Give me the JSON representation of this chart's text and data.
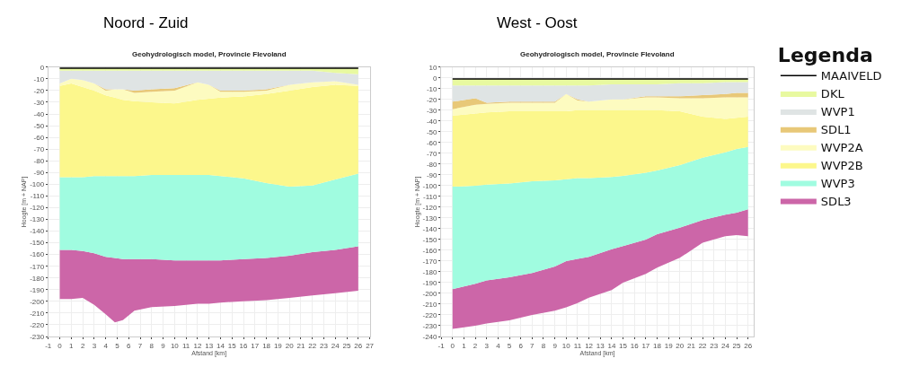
{
  "chart_data": [
    {
      "type": "area",
      "title": "Noord - Zuid",
      "subtitle": "Geohydrologisch model, Provincie Flevoland",
      "xlabel": "Afstand [km]",
      "ylabel": "Hoogte [m + NAP]",
      "grid": true,
      "legend": "right",
      "legend_title": "Legenda",
      "x": [
        0,
        1,
        2,
        3,
        4,
        4.8,
        5.5,
        6.5,
        8,
        10,
        12,
        13,
        14,
        16,
        18,
        20,
        22,
        24,
        26
      ],
      "xlim": [
        -1,
        27
      ],
      "xticks": [
        -1,
        0,
        1,
        2,
        3,
        4,
        5,
        6,
        7,
        8,
        9,
        10,
        11,
        12,
        13,
        14,
        15,
        16,
        17,
        18,
        19,
        20,
        21,
        22,
        23,
        24,
        25,
        26,
        27
      ],
      "ylim": [
        -230,
        0
      ],
      "yticks": [
        0,
        -10,
        -20,
        -30,
        -40,
        -50,
        -60,
        -70,
        -80,
        -90,
        -100,
        -110,
        -120,
        -130,
        -140,
        -150,
        -160,
        -170,
        -180,
        -190,
        -200,
        -210,
        -220,
        -230
      ],
      "series": [
        {
          "name": "MAAIVELD",
          "type": "line",
          "color": "#000000",
          "values": [
            -1,
            -1,
            -1,
            -1,
            -1,
            -1,
            -1,
            -1,
            -1,
            -1,
            -1,
            -1,
            -1,
            -1,
            -1,
            -1,
            -1,
            -1,
            -1
          ]
        },
        {
          "name": "DKL",
          "color": "#e8f9a0",
          "values": [
            -3,
            -3,
            -3,
            -3,
            -3,
            -3,
            -3,
            -3,
            -3,
            -3,
            -3,
            -3,
            -3,
            -3,
            -3,
            -3,
            -3,
            -5,
            -6
          ]
        },
        {
          "name": "WVP1",
          "color": "#dfe4e4",
          "values": [
            -14,
            -10,
            -11,
            -14,
            -19,
            -19,
            -19,
            -20,
            -19,
            -18,
            -13,
            -15,
            -20,
            -20,
            -19,
            -15,
            -13,
            -12,
            -15
          ]
        },
        {
          "name": "SDL1",
          "color": "#e8c878",
          "values": [
            -14,
            -10,
            -11,
            -14,
            -20,
            -19,
            -19,
            -22,
            -21,
            -20,
            -13,
            -15,
            -21,
            -21,
            -20,
            -15,
            -13,
            -12,
            -15
          ]
        },
        {
          "name": "WVP2A",
          "color": "#fdfbc0",
          "values": [
            -16,
            -14,
            -17,
            -20,
            -24,
            -26,
            -28,
            -29,
            -30,
            -31,
            -28,
            -27,
            -26,
            -25,
            -23,
            -20,
            -17,
            -15,
            -16
          ]
        },
        {
          "name": "WVP2B",
          "color": "#fcf78c",
          "values": [
            -94,
            -94,
            -94,
            -93,
            -93,
            -93,
            -93,
            -93,
            -92,
            -92,
            -92,
            -92,
            -93,
            -95,
            -99,
            -102,
            -101,
            -96,
            -91
          ]
        },
        {
          "name": "WVP3",
          "color": "#a0fce0",
          "values": [
            -156,
            -156,
            -157,
            -159,
            -162,
            -163,
            -164,
            -164,
            -164,
            -165,
            -165,
            -165,
            -165,
            -164,
            -163,
            -161,
            -158,
            -156,
            -153
          ]
        },
        {
          "name": "SDL3",
          "color": "#cc66a8",
          "values": [
            -198,
            -198,
            -197,
            -203,
            -211,
            -218,
            -216,
            -208,
            -205,
            -204,
            -202,
            -202,
            -201,
            -200,
            -199,
            -197,
            -195,
            -193,
            -191
          ]
        }
      ]
    },
    {
      "type": "area",
      "title": "West - Oost",
      "subtitle": "Geohydrologisch model, Provincie Flevoland",
      "xlabel": "Afstand [km]",
      "ylabel": "Hoogte [m + NAP]",
      "grid": true,
      "x": [
        0,
        2,
        3,
        5,
        7,
        9,
        10,
        11,
        12,
        14,
        15,
        17,
        18,
        20,
        22,
        24,
        25,
        26
      ],
      "xlim": [
        -1,
        26.5
      ],
      "xticks": [
        -1,
        0,
        1,
        2,
        3,
        4,
        5,
        6,
        7,
        8,
        9,
        10,
        11,
        12,
        13,
        14,
        15,
        16,
        17,
        18,
        19,
        20,
        21,
        22,
        23,
        24,
        25,
        26
      ],
      "ylim": [
        -240,
        10
      ],
      "yticks": [
        10,
        0,
        -10,
        -20,
        -30,
        -40,
        -50,
        -60,
        -70,
        -80,
        -90,
        -100,
        -110,
        -120,
        -130,
        -140,
        -150,
        -160,
        -170,
        -180,
        -190,
        -200,
        -210,
        -220,
        -230,
        -240
      ],
      "series": [
        {
          "type": "line",
          "color": "#000000",
          "values": [
            -1,
            -1,
            -1,
            -1,
            -1,
            -1,
            -1,
            -1,
            -1,
            -1,
            -1,
            -1,
            -1,
            -1,
            -1,
            -1,
            -1,
            -1
          ]
        },
        {
          "color": "#e8f9a0",
          "values": [
            -7,
            -7,
            -7,
            -7,
            -7,
            -7,
            -7,
            -7,
            -7,
            -6,
            -6,
            -6,
            -6,
            -5,
            -5,
            -4,
            -4,
            -4
          ]
        },
        {
          "color": "#dfe4e4",
          "values": [
            -22,
            -19,
            -23,
            -22,
            -22,
            -22,
            -15,
            -20,
            -22,
            -20,
            -20,
            -17,
            -17,
            -17,
            -16,
            -15,
            -14,
            -14
          ]
        },
        {
          "color": "#e8c878",
          "values": [
            -29,
            -25,
            -24,
            -23,
            -23,
            -23,
            -15,
            -21,
            -22,
            -20,
            -20,
            -18,
            -18,
            -19,
            -19,
            -18,
            -18,
            -18
          ]
        },
        {
          "color": "#fdfbc0",
          "values": [
            -35,
            -33,
            -32,
            -31,
            -31,
            -31,
            -31,
            -30,
            -30,
            -30,
            -30,
            -30,
            -30,
            -31,
            -36,
            -38,
            -37,
            -36
          ]
        },
        {
          "color": "#fcf78c",
          "values": [
            -101,
            -100,
            -99,
            -98,
            -96,
            -95,
            -94,
            -93,
            -93,
            -92,
            -91,
            -88,
            -86,
            -81,
            -74,
            -69,
            -66,
            -64
          ]
        },
        {
          "color": "#a0fce0",
          "values": [
            -196,
            -191,
            -188,
            -185,
            -181,
            -175,
            -170,
            -168,
            -166,
            -159,
            -156,
            -150,
            -145,
            -139,
            -132,
            -127,
            -125,
            -122
          ]
        },
        {
          "color": "#cc66a8",
          "values": [
            -233,
            -230,
            -228,
            -225,
            -220,
            -216,
            -213,
            -209,
            -204,
            -197,
            -190,
            -182,
            -176,
            -167,
            -153,
            -147,
            -146,
            -147
          ]
        }
      ]
    }
  ]
}
